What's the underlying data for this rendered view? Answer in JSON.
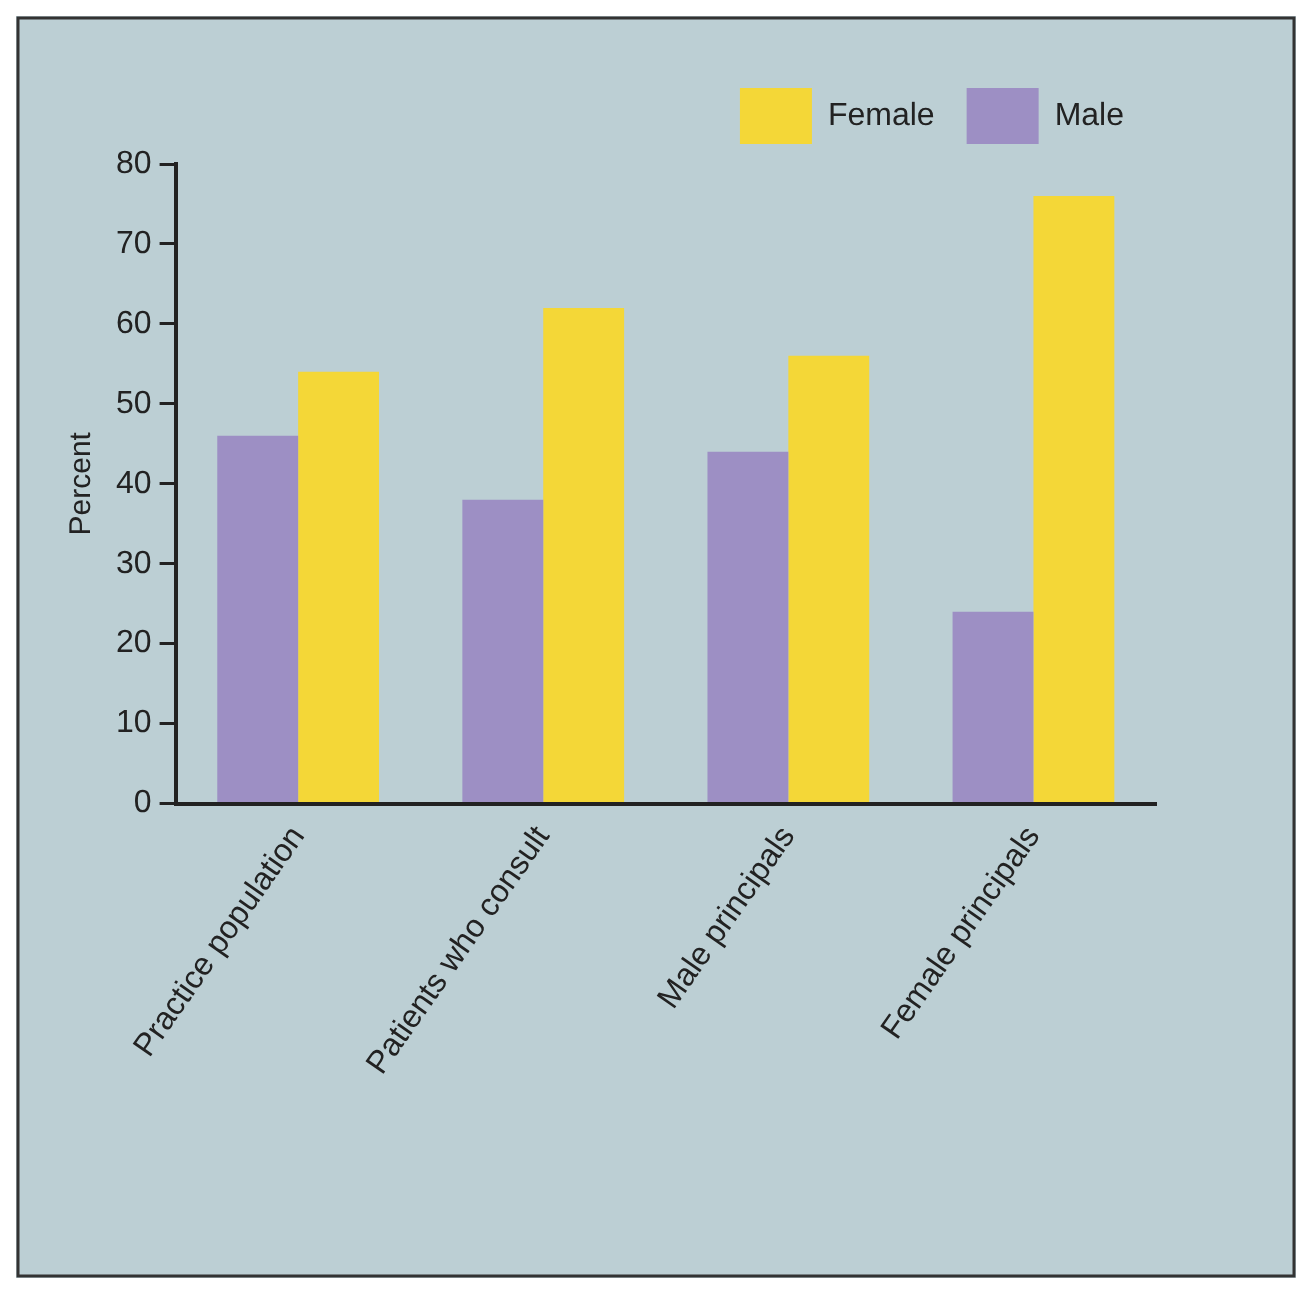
{
  "chart_data": {
    "type": "bar",
    "ylabel": "Percent",
    "categories": [
      "Practice population",
      "Patients who consult",
      "Male principals",
      "Female principals"
    ],
    "series": [
      {
        "name": "Male",
        "color": "#9d8fc4",
        "values": [
          46,
          38,
          44,
          24
        ]
      },
      {
        "name": "Female",
        "color": "#f4d737",
        "values": [
          54,
          62,
          56,
          76
        ]
      }
    ],
    "ylim": [
      0,
      80
    ],
    "yticks": [
      0,
      10,
      20,
      30,
      40,
      50,
      60,
      70,
      80
    ],
    "grid": false,
    "legend": "top right"
  }
}
